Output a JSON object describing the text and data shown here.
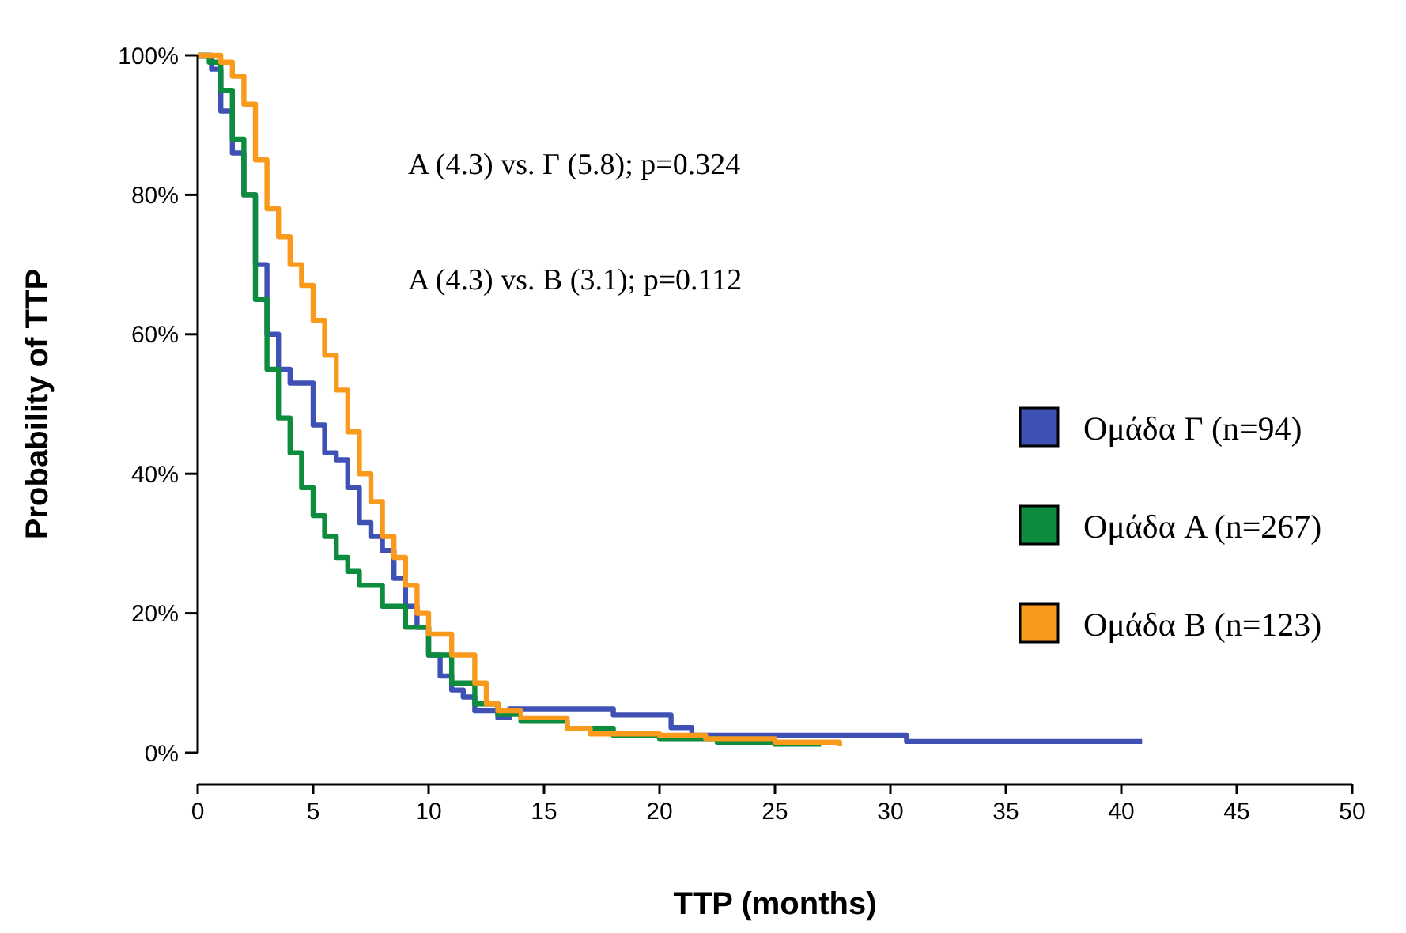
{
  "chart_data": {
    "type": "step",
    "xlabel": "TTP (months)",
    "ylabel": "Probability of TTP",
    "xlim": [
      0,
      50
    ],
    "xticks": [
      0,
      5,
      10,
      15,
      20,
      25,
      30,
      35,
      40,
      45,
      50
    ],
    "ylim": [
      0,
      100
    ],
    "yticks": [
      {
        "value": 0,
        "label": "0%"
      },
      {
        "value": 20,
        "label": "20%"
      },
      {
        "value": 40,
        "label": "40%"
      },
      {
        "value": 60,
        "label": "60%"
      },
      {
        "value": 80,
        "label": "80%"
      },
      {
        "value": 100,
        "label": "100%"
      }
    ],
    "grid": false,
    "legend": "right",
    "marker": "none",
    "line_style": "solid",
    "annotations": [
      "A (4.3) vs. Γ (5.8); p=0.324",
      "A (4.3) vs. B (3.1); p=0.112"
    ],
    "series": [
      {
        "name": "Ομάδα Γ (n=94)",
        "color": "#3f51b5",
        "x": [
          0,
          0.6,
          1,
          1.5,
          2,
          2.5,
          3,
          3.5,
          4,
          5,
          5.5,
          6,
          6.5,
          7,
          7.5,
          8,
          8.5,
          9,
          9.5,
          10,
          10.5,
          11,
          11.5,
          12,
          13,
          13.5,
          18,
          20.5,
          21.4,
          30.7,
          40.9
        ],
        "values": [
          100,
          98,
          92,
          86,
          80,
          70,
          60,
          55,
          53,
          47,
          43,
          42,
          38,
          33,
          31,
          29,
          25,
          21,
          18,
          14,
          11,
          9,
          8,
          6,
          5,
          6.3,
          5.4,
          3.6,
          2.5,
          1.6,
          1.6
        ]
      },
      {
        "name": "Ομάδα A (n=267)",
        "color": "#0c8c3c",
        "x": [
          0,
          0.5,
          1,
          1.5,
          2,
          2.5,
          3,
          3.5,
          4,
          4.5,
          5,
          5.5,
          6,
          6.5,
          7,
          8,
          9,
          10,
          11,
          12,
          13,
          14,
          16,
          18,
          20,
          22.5,
          25,
          27
        ],
        "values": [
          100,
          99,
          95,
          88,
          80,
          65,
          55,
          48,
          43,
          38,
          34,
          31,
          28,
          26,
          24,
          21,
          18,
          14,
          10,
          7,
          5.5,
          4.5,
          3.5,
          2.5,
          2,
          1.5,
          1.2,
          1.2
        ]
      },
      {
        "name": "Ομάδα B (n=123)",
        "color": "#f99a1c",
        "x": [
          0,
          1,
          1.5,
          2,
          2.5,
          3,
          3.5,
          4,
          4.5,
          5,
          5.5,
          6,
          6.5,
          7,
          7.5,
          8,
          8.5,
          9,
          9.5,
          10,
          11,
          12,
          12.5,
          13,
          14,
          16,
          17,
          20,
          22,
          25,
          27.8
        ],
        "values": [
          100,
          99,
          97,
          93,
          85,
          78,
          74,
          70,
          67,
          62,
          57,
          52,
          46,
          40,
          36,
          31,
          28,
          24,
          20,
          17,
          14,
          10,
          7,
          6,
          5,
          3.5,
          2.7,
          2.5,
          2,
          1.5,
          1
        ]
      }
    ]
  }
}
